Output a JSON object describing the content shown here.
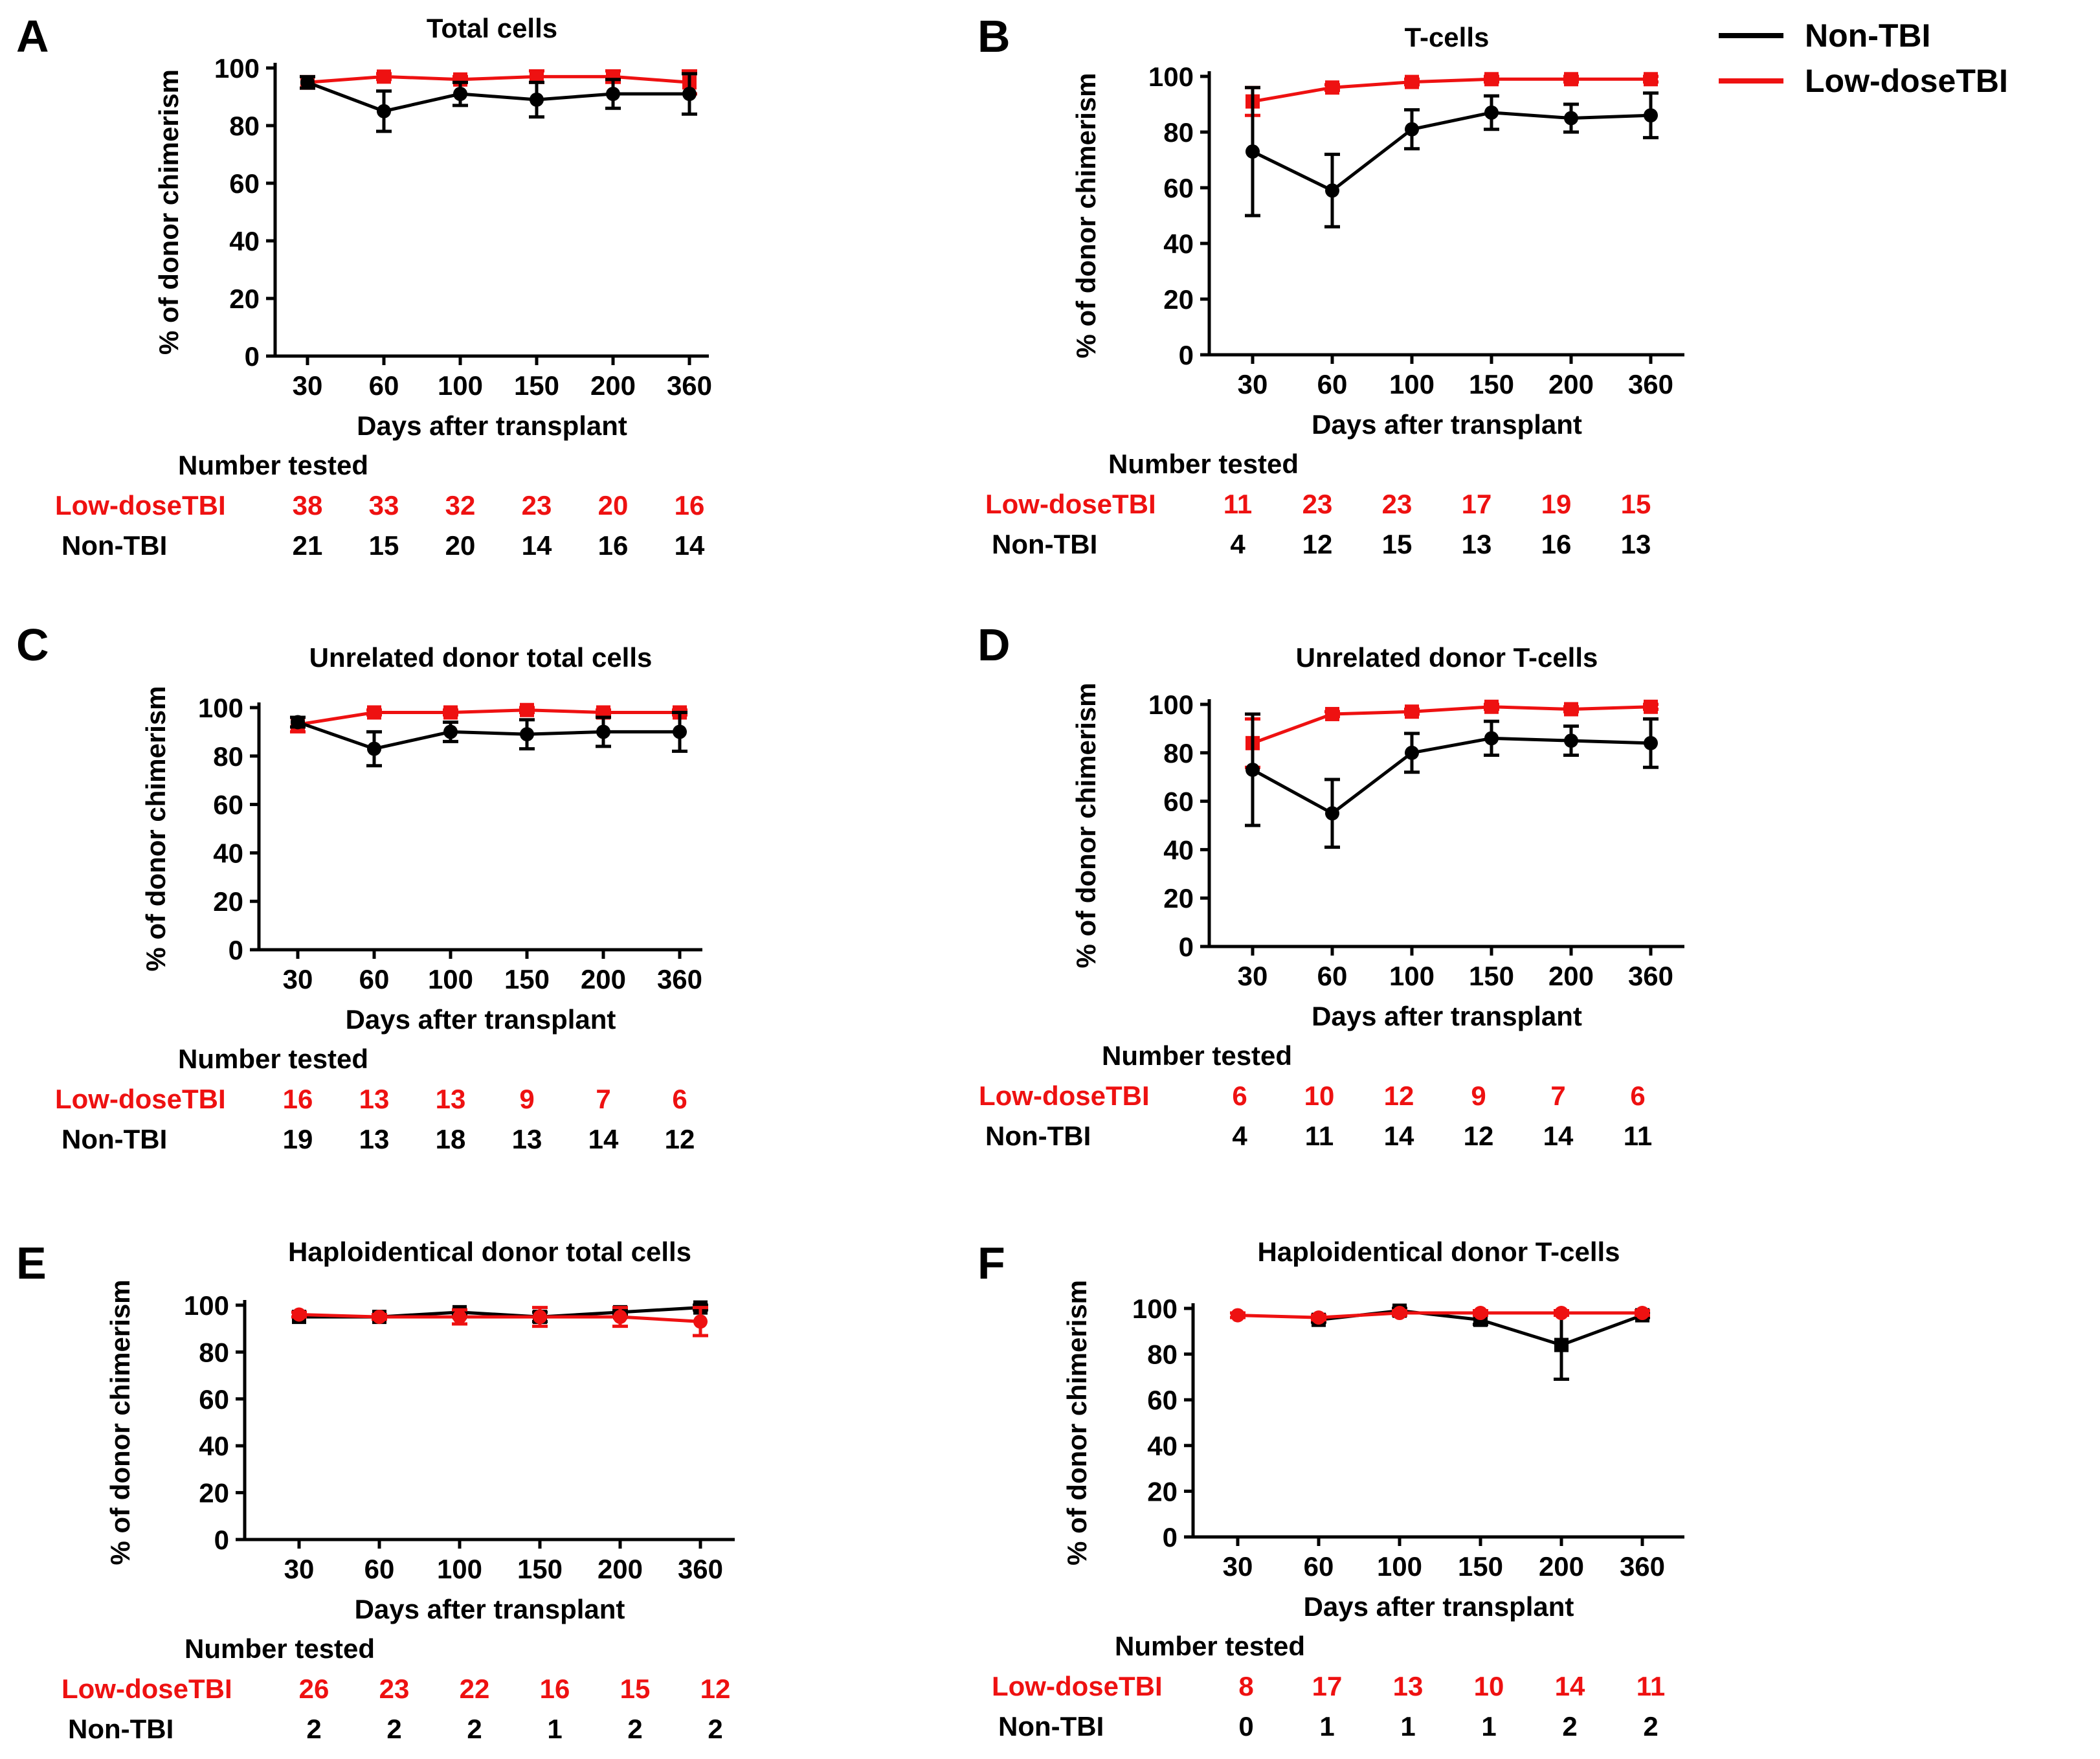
{
  "legend": {
    "non_tbi_label": "Non-TBI",
    "low_dose_label": "Low-doseTBI"
  },
  "colors": {
    "non_tbi": "#000000",
    "low_dose": "#ee1111"
  },
  "chart_data": [
    {
      "panel": "A",
      "type": "line",
      "title": "Total cells",
      "xlabel": "Days after transplant",
      "ylabel": "% of donor chimerism",
      "categories": [
        "30",
        "60",
        "100",
        "150",
        "200",
        "360"
      ],
      "ylim": [
        0,
        100
      ],
      "yticks": [
        "0",
        "20",
        "40",
        "60",
        "80",
        "100"
      ],
      "series": [
        {
          "name": "Low-doseTBI",
          "marker": "square",
          "values": [
            95,
            97,
            96,
            97,
            97,
            95
          ],
          "error": [
            2,
            1,
            1,
            2,
            2,
            4
          ]
        },
        {
          "name": "Non-TBI",
          "marker": "circle",
          "values": [
            95,
            85,
            91,
            89,
            91,
            91
          ],
          "error": [
            2,
            7,
            4,
            6,
            5,
            7
          ]
        }
      ],
      "counts_header": "Number tested",
      "counts": {
        "low_dose_label": "Low-doseTBI",
        "low_dose": [
          "38",
          "33",
          "32",
          "23",
          "20",
          "16"
        ],
        "non_tbi_label": "Non-TBI",
        "non_tbi": [
          "21",
          "15",
          "20",
          "14",
          "16",
          "14"
        ]
      }
    },
    {
      "panel": "B",
      "type": "line",
      "title": "T-cells",
      "xlabel": "Days after transplant",
      "ylabel": "% of donor chimerism",
      "categories": [
        "30",
        "60",
        "100",
        "150",
        "200",
        "360"
      ],
      "ylim": [
        0,
        100
      ],
      "yticks": [
        "0",
        "20",
        "40",
        "60",
        "80",
        "100"
      ],
      "series": [
        {
          "name": "Low-doseTBI",
          "marker": "square",
          "values": [
            91,
            96,
            98,
            99,
            99,
            99
          ],
          "error": [
            5,
            1,
            1,
            1,
            1,
            1
          ]
        },
        {
          "name": "Non-TBI",
          "marker": "circle",
          "values": [
            73,
            59,
            81,
            87,
            85,
            86
          ],
          "error": [
            23,
            13,
            7,
            6,
            5,
            8
          ]
        }
      ],
      "counts_header": "Number tested",
      "counts": {
        "low_dose_label": "Low-doseTBI",
        "low_dose": [
          "11",
          "23",
          "23",
          "17",
          "19",
          "15"
        ],
        "non_tbi_label": "Non-TBI",
        "non_tbi": [
          "4",
          "12",
          "15",
          "13",
          "16",
          "13"
        ]
      }
    },
    {
      "panel": "C",
      "type": "line",
      "title": "Unrelated donor total cells",
      "xlabel": "Days after transplant",
      "ylabel": "% of donor chimerism",
      "categories": [
        "30",
        "60",
        "100",
        "150",
        "200",
        "360"
      ],
      "ylim": [
        0,
        100
      ],
      "yticks": [
        "0",
        "20",
        "40",
        "60",
        "80",
        "100"
      ],
      "series": [
        {
          "name": "Low-doseTBI",
          "marker": "square",
          "values": [
            93,
            98,
            98,
            99,
            98,
            98
          ],
          "error": [
            3,
            1,
            1,
            1,
            1,
            1
          ]
        },
        {
          "name": "Non-TBI",
          "marker": "circle",
          "values": [
            94,
            83,
            90,
            89,
            90,
            90
          ],
          "error": [
            2,
            7,
            4,
            6,
            6,
            8
          ]
        }
      ],
      "counts_header": "Number tested",
      "counts": {
        "low_dose_label": "Low-doseTBI",
        "low_dose": [
          "16",
          "13",
          "13",
          "9",
          "7",
          "6"
        ],
        "non_tbi_label": "Non-TBI",
        "non_tbi": [
          "19",
          "13",
          "18",
          "13",
          "14",
          "12"
        ]
      }
    },
    {
      "panel": "D",
      "type": "line",
      "title": "Unrelated donor T-cells",
      "xlabel": "Days after transplant",
      "ylabel": "% of donor chimerism",
      "categories": [
        "30",
        "60",
        "100",
        "150",
        "200",
        "360"
      ],
      "ylim": [
        0,
        100
      ],
      "yticks": [
        "0",
        "20",
        "40",
        "60",
        "80",
        "100"
      ],
      "series": [
        {
          "name": "Low-doseTBI",
          "marker": "square",
          "values": [
            84,
            96,
            97,
            99,
            98,
            99
          ],
          "error": [
            10,
            1,
            1,
            1,
            1,
            1
          ]
        },
        {
          "name": "Non-TBI",
          "marker": "circle",
          "values": [
            73,
            55,
            80,
            86,
            85,
            84
          ],
          "error": [
            23,
            14,
            8,
            7,
            6,
            10
          ]
        }
      ],
      "counts_header": "Number tested",
      "counts": {
        "low_dose_label": "Low-doseTBI",
        "low_dose": [
          "6",
          "10",
          "12",
          "9",
          "7",
          "6"
        ],
        "non_tbi_label": "Non-TBI",
        "non_tbi": [
          "4",
          "11",
          "14",
          "12",
          "14",
          "11"
        ]
      }
    },
    {
      "panel": "E",
      "type": "line",
      "title": "Haploidentical donor total cells",
      "xlabel": "Days after transplant",
      "ylabel": "% of donor chimerism",
      "categories": [
        "30",
        "60",
        "100",
        "150",
        "200",
        "360"
      ],
      "ylim": [
        0,
        100
      ],
      "yticks": [
        "0",
        "20",
        "40",
        "60",
        "80",
        "100"
      ],
      "series": [
        {
          "name": "Low-doseTBI",
          "marker": "circle",
          "values": [
            96,
            95,
            95,
            95,
            95,
            93
          ],
          "error": [
            1,
            1,
            3,
            4,
            4,
            6
          ]
        },
        {
          "name": "Non-TBI",
          "marker": "square",
          "values": [
            95,
            95,
            97,
            95,
            97,
            99
          ],
          "error": [
            0,
            0,
            1,
            2,
            1,
            1
          ]
        }
      ],
      "counts_header": "Number tested",
      "counts": {
        "low_dose_label": "Low-doseTBI",
        "low_dose": [
          "26",
          "23",
          "22",
          "16",
          "15",
          "12"
        ],
        "non_tbi_label": "Non-TBI",
        "non_tbi": [
          "2",
          "2",
          "2",
          "1",
          "2",
          "2"
        ]
      }
    },
    {
      "panel": "F",
      "type": "line",
      "title": "Haploidentical donor T-cells",
      "xlabel": "Days after transplant",
      "ylabel": "% of donor chimerism",
      "categories": [
        "30",
        "60",
        "100",
        "150",
        "200",
        "360"
      ],
      "ylim": [
        0,
        100
      ],
      "yticks": [
        "0",
        "20",
        "40",
        "60",
        "80",
        "100"
      ],
      "series": [
        {
          "name": "Low-doseTBI",
          "marker": "circle",
          "values": [
            97,
            96,
            98,
            98,
            98,
            98
          ],
          "error": [
            1,
            1,
            1,
            1,
            1,
            1
          ]
        },
        {
          "name": "Non-TBI",
          "marker": "square",
          "values": [
            null,
            95,
            99,
            95,
            84,
            97
          ],
          "error": [
            0,
            1,
            1,
            2,
            15,
            1
          ]
        }
      ],
      "counts_header": "Number tested",
      "counts": {
        "low_dose_label": "Low-doseTBI",
        "low_dose": [
          "8",
          "17",
          "13",
          "10",
          "14",
          "11"
        ],
        "non_tbi_label": "Non-TBI",
        "non_tbi": [
          "0",
          "1",
          "1",
          "1",
          "2",
          "2"
        ]
      }
    }
  ]
}
